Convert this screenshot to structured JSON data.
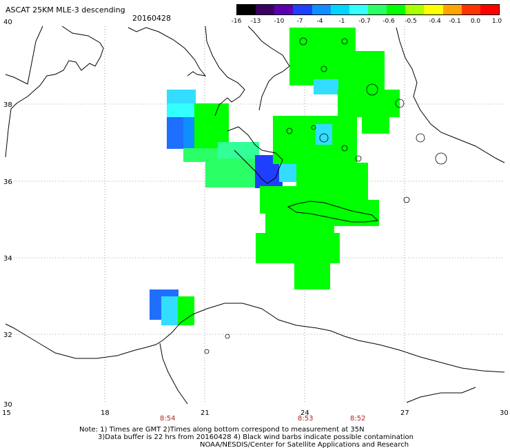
{
  "title": "ASCAT 25KM MLE-3 descending",
  "date": "20160428",
  "colorbar": {
    "labels": [
      "-16",
      "-13",
      "-10",
      "-7",
      "-4",
      "-1",
      "-0.7",
      "-0.6",
      "-0.5",
      "-0.4",
      "-0.1",
      "0.0",
      "1.0"
    ],
    "colors": [
      "#000000",
      "#3a0060",
      "#5a00b0",
      "#1f3fff",
      "#0f8fff",
      "#00d4ff",
      "#33ffff",
      "#2bff66",
      "#00ff00",
      "#aaff00",
      "#ffff00",
      "#ffa500",
      "#ff3300",
      "#ff0000"
    ]
  },
  "map": {
    "lat_labels": [
      "40",
      "38",
      "36",
      "34",
      "32",
      "30"
    ],
    "lon_labels": [
      "15",
      "18",
      "21",
      "24",
      "27",
      "30"
    ]
  },
  "times": [
    "8:54",
    "8:53",
    "8:52"
  ],
  "notes": [
    "Note: 1) Times are GMT 2)Times along bottom correspond to measurement at 35N",
    "3)Data buffer is 22 hrs from 20160428 4) Black wind barbs indicate possible contamination",
    "NOAA/NESDIS/Center for Satellite Applications and Research"
  ]
}
